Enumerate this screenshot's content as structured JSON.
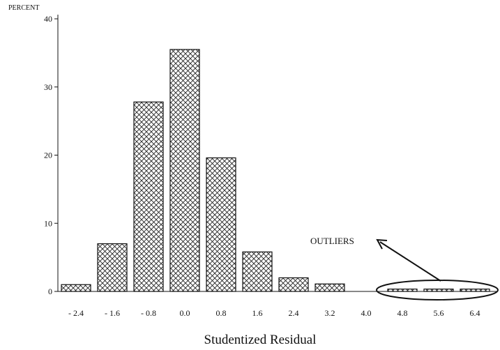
{
  "chart_data": {
    "type": "bar",
    "ylabel": "PERCENT",
    "xlabel": "Studentized Residual",
    "categories": [
      "-2.4",
      "-1.6",
      "-0.8",
      "0.0",
      "0.8",
      "1.6",
      "2.4",
      "3.2",
      "4.0",
      "4.8",
      "5.6",
      "6.4"
    ],
    "values": [
      1.0,
      7.0,
      27.8,
      35.5,
      19.6,
      5.8,
      2.0,
      1.1,
      0,
      0.35,
      0.35,
      0.35
    ],
    "ylim": [
      0,
      40
    ],
    "yticks": [
      "0",
      "10",
      "20",
      "30",
      "40"
    ],
    "fill_pattern": "crosshatch",
    "annotations": [
      {
        "text": "OUTLIERS",
        "points_to": [
          "4.8",
          "5.6",
          "6.4"
        ]
      }
    ]
  }
}
